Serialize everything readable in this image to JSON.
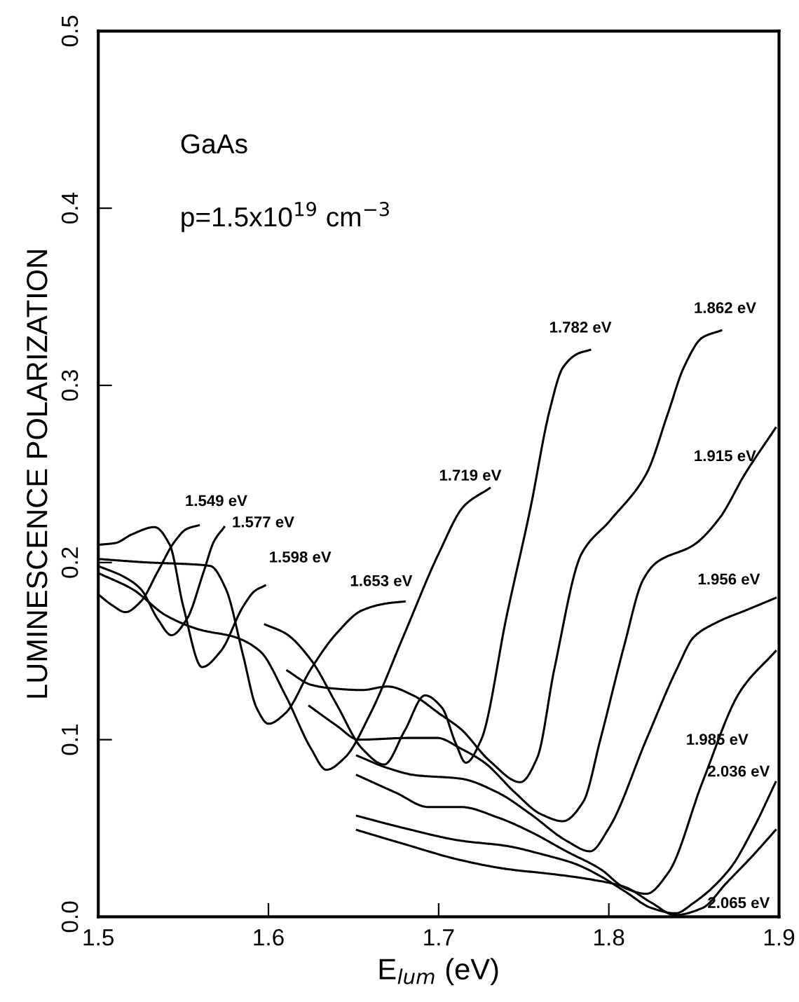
{
  "chart_data": {
    "type": "line",
    "xlabel": "E$_{lum}$ (eV)",
    "ylabel": "LUMINESCENCE POLARIZATION",
    "annotations": [
      "GaAs",
      "p=1.5x10$^{19}$ cm$^{−3}$"
    ],
    "xlim": [
      1.5,
      1.9
    ],
    "xticks": [
      1.5,
      1.6,
      1.7,
      1.8,
      1.9
    ],
    "ylim": [
      0.0,
      0.5
    ],
    "yticks": [
      {
        "value": 0.0,
        "label": "0.0"
      },
      0.1,
      0.2,
      0.3,
      0.4,
      0.5
    ],
    "grid": false,
    "legend": false,
    "marker": "none",
    "line_style": "solid",
    "series": [
      {
        "name": "1.549 eV",
        "color": "#000000",
        "x": [
          1.5,
          1.508,
          1.516,
          1.525,
          1.535,
          1.545,
          1.552,
          1.559
        ],
        "values": [
          0.182,
          0.176,
          0.172,
          0.178,
          0.195,
          0.212,
          0.219,
          0.221
        ]
      },
      {
        "name": "1.577 eV",
        "color": "#000000",
        "x": [
          1.5,
          1.515,
          1.525,
          1.535,
          1.543,
          1.552,
          1.562,
          1.568,
          1.574
        ],
        "values": [
          0.198,
          0.192,
          0.185,
          0.168,
          0.159,
          0.168,
          0.195,
          0.212,
          0.22
        ]
      },
      {
        "name": "1.598 eV",
        "color": "#000000",
        "x": [
          1.5,
          1.51,
          1.52,
          1.533,
          1.542,
          1.55,
          1.561,
          1.572,
          1.585,
          1.592,
          1.598
        ],
        "values": [
          0.21,
          0.211,
          0.216,
          0.22,
          0.21,
          0.175,
          0.141,
          0.15,
          0.175,
          0.184,
          0.187
        ]
      },
      {
        "name": "1.653 eV",
        "color": "#000000",
        "x": [
          1.5,
          1.53,
          1.555,
          1.566,
          1.575,
          1.585,
          1.593,
          1.6,
          1.61,
          1.625,
          1.64,
          1.655,
          1.67,
          1.68
        ],
        "values": [
          0.202,
          0.2,
          0.199,
          0.198,
          0.185,
          0.148,
          0.118,
          0.109,
          0.115,
          0.14,
          0.16,
          0.173,
          0.177,
          0.178
        ]
      },
      {
        "name": "1.719 eV",
        "color": "#000000",
        "x": [
          1.5,
          1.52,
          1.54,
          1.56,
          1.58,
          1.595,
          1.61,
          1.625,
          1.634,
          1.645,
          1.66,
          1.68,
          1.7,
          1.715,
          1.73
        ],
        "values": [
          0.194,
          0.185,
          0.17,
          0.162,
          0.158,
          0.15,
          0.125,
          0.095,
          0.083,
          0.09,
          0.115,
          0.16,
          0.205,
          0.232,
          0.242
        ]
      },
      {
        "name": "1.782 eV",
        "color": "#000000",
        "x": [
          1.598,
          1.61,
          1.625,
          1.64,
          1.655,
          1.668,
          1.68,
          1.692,
          1.702,
          1.71,
          1.716,
          1.725,
          1.74,
          1.754,
          1.765,
          1.773,
          1.782,
          1.789
        ],
        "values": [
          0.165,
          0.16,
          0.145,
          0.12,
          0.095,
          0.086,
          0.105,
          0.125,
          0.118,
          0.098,
          0.087,
          0.1,
          0.17,
          0.231,
          0.285,
          0.31,
          0.318,
          0.32
        ]
      },
      {
        "name": "1.862 eV",
        "color": "#000000",
        "x": [
          1.611,
          1.625,
          1.637,
          1.655,
          1.67,
          1.685,
          1.7,
          1.713,
          1.73,
          1.748,
          1.758,
          1.768,
          1.784,
          1.801,
          1.822,
          1.835,
          1.844,
          1.855,
          1.866
        ],
        "values": [
          0.139,
          0.131,
          0.129,
          0.128,
          0.13,
          0.125,
          0.115,
          0.106,
          0.088,
          0.076,
          0.09,
          0.14,
          0.205,
          0.224,
          0.25,
          0.285,
          0.31,
          0.327,
          0.331
        ]
      },
      {
        "name": "1.915 eV",
        "color": "#000000",
        "x": [
          1.624,
          1.64,
          1.653,
          1.683,
          1.699,
          1.713,
          1.727,
          1.745,
          1.76,
          1.773,
          1.785,
          1.795,
          1.809,
          1.82,
          1.828,
          1.85,
          1.865,
          1.88,
          1.898
        ],
        "values": [
          0.119,
          0.108,
          0.1,
          0.101,
          0.101,
          0.095,
          0.087,
          0.07,
          0.058,
          0.054,
          0.065,
          0.1,
          0.153,
          0.19,
          0.2,
          0.21,
          0.225,
          0.25,
          0.276
        ]
      },
      {
        "name": "1.956 eV",
        "color": "#000000",
        "x": [
          1.652,
          1.67,
          1.686,
          1.713,
          1.735,
          1.754,
          1.775,
          1.789,
          1.8,
          1.822,
          1.84,
          1.85,
          1.863,
          1.883,
          1.898
        ],
        "values": [
          0.091,
          0.084,
          0.08,
          0.078,
          0.07,
          0.058,
          0.043,
          0.037,
          0.05,
          0.1,
          0.14,
          0.158,
          0.166,
          0.174,
          0.18
        ]
      },
      {
        "name": "1.985 eV",
        "color": "#000000",
        "x": [
          1.652,
          1.675,
          1.694,
          1.713,
          1.735,
          1.754,
          1.775,
          1.795,
          1.81,
          1.822,
          1.835,
          1.855,
          1.877,
          1.898
        ],
        "values": [
          0.08,
          0.07,
          0.062,
          0.062,
          0.056,
          0.048,
          0.037,
          0.027,
          0.016,
          0.013,
          0.025,
          0.076,
          0.127,
          0.15
        ]
      },
      {
        "name": "2.036 eV",
        "color": "#000000",
        "x": [
          1.652,
          1.68,
          1.713,
          1.74,
          1.762,
          1.78,
          1.795,
          1.81,
          1.825,
          1.839,
          1.85,
          1.871,
          1.885,
          1.898
        ],
        "values": [
          0.057,
          0.05,
          0.043,
          0.04,
          0.035,
          0.03,
          0.023,
          0.014,
          0.005,
          0.002,
          0.008,
          0.027,
          0.05,
          0.076
        ]
      },
      {
        "name": "2.065 eV",
        "color": "#000000",
        "x": [
          1.652,
          1.68,
          1.713,
          1.74,
          1.768,
          1.79,
          1.809,
          1.825,
          1.839,
          1.855,
          1.869,
          1.885,
          1.898
        ],
        "values": [
          0.049,
          0.041,
          0.032,
          0.027,
          0.024,
          0.021,
          0.017,
          0.008,
          0.001,
          0.005,
          0.019,
          0.035,
          0.049
        ]
      }
    ]
  }
}
